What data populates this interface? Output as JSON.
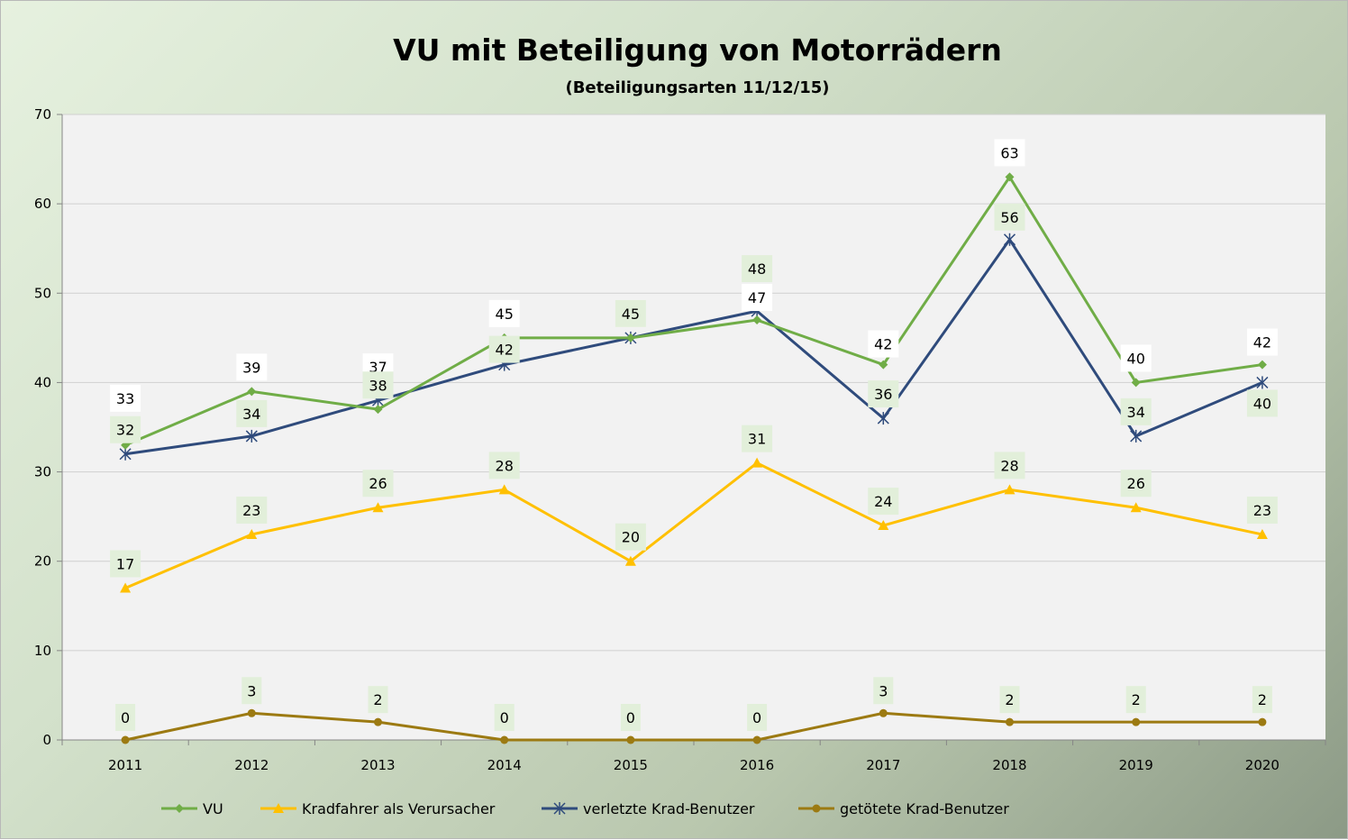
{
  "chart_data": {
    "type": "line",
    "title": "VU mit Beteiligung von Motorrädern",
    "subtitle": "(Beteiligungsarten 11/12/15)",
    "xlabel": "",
    "ylabel": "",
    "categories": [
      "2011",
      "2012",
      "2013",
      "2014",
      "2015",
      "2016",
      "2017",
      "2018",
      "2019",
      "2020"
    ],
    "ylim": [
      0,
      70
    ],
    "yticks": [
      0,
      10,
      20,
      30,
      40,
      50,
      60,
      70
    ],
    "grid": true,
    "legend_position": "bottom",
    "series": [
      {
        "name": "VU",
        "color": "#70ad47",
        "marker": "diamond",
        "label_bg": "#ffffff",
        "values": [
          33,
          39,
          37,
          45,
          45,
          47,
          42,
          63,
          40,
          42
        ]
      },
      {
        "name": "Kradfahrer als Verursacher",
        "color": "#ffc000",
        "marker": "triangle",
        "label_bg": "#e2efda",
        "values": [
          17,
          23,
          26,
          28,
          20,
          31,
          24,
          28,
          26,
          23
        ]
      },
      {
        "name": "verletzte Krad-Benutzer",
        "color": "#2f4b7c",
        "marker": "star",
        "label_bg": "#e2efda",
        "values": [
          32,
          34,
          38,
          42,
          45,
          48,
          36,
          56,
          34,
          40
        ]
      },
      {
        "name": "getötete Krad-Benutzer",
        "color": "#9c7a12",
        "marker": "circle",
        "label_bg": "#e2efda",
        "values": [
          0,
          3,
          2,
          0,
          0,
          0,
          3,
          2,
          2,
          2
        ]
      }
    ]
  }
}
